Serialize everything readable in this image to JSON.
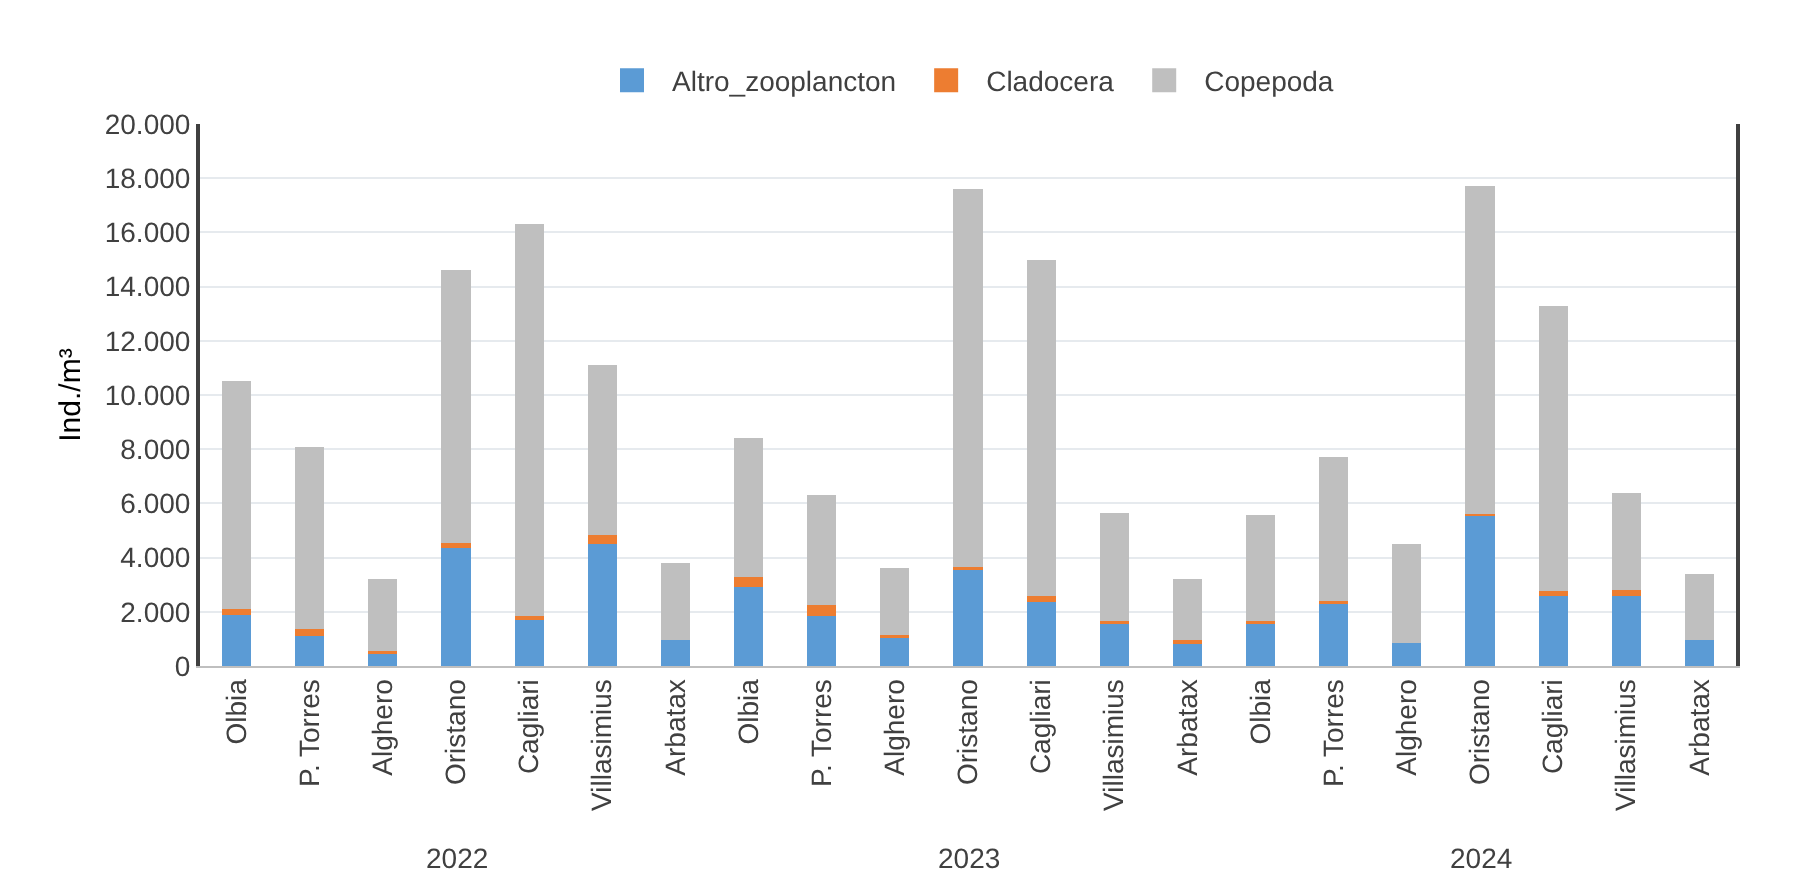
{
  "chart_data": {
    "type": "bar",
    "stacked": true,
    "ylabel": "Ind./m³",
    "categories": [
      "Olbia",
      "P. Torres",
      "Alghero",
      "Oristano",
      "Cagliari",
      "Villasimius",
      "Arbatax",
      "Olbia",
      "P. Torres",
      "Alghero",
      "Oristano",
      "Cagliari",
      "Villasimius",
      "Arbatax",
      "Olbia",
      "P. Torres",
      "Alghero",
      "Oristano",
      "Cagliari",
      "Villasimius",
      "Arbatax"
    ],
    "annotations": [
      "2022",
      "2023",
      "2024"
    ],
    "series": [
      {
        "name": "Altro_zooplancton",
        "color": "#5b9bd5",
        "values": [
          1900,
          1100,
          500,
          4350,
          1750,
          4500,
          950,
          2900,
          1850,
          1050,
          3550,
          2350,
          1550,
          800,
          1550,
          2300,
          850,
          5550,
          2650,
          2600,
          950
        ]
      },
      {
        "name": "Cladocera",
        "color": "#ed7d31",
        "values": [
          200,
          250,
          50,
          200,
          100,
          350,
          0,
          400,
          400,
          100,
          100,
          250,
          100,
          150,
          100,
          100,
          0,
          50,
          100,
          200,
          0
        ]
      },
      {
        "name": "Copepoda",
        "color": "#bfbfbf",
        "values": [
          8400,
          6750,
          2650,
          10050,
          14450,
          6250,
          2850,
          5100,
          4050,
          2450,
          13950,
          12400,
          4000,
          2250,
          3920,
          5300,
          3650,
          12100,
          10550,
          3600,
          2450
        ]
      }
    ],
    "ylim": [
      0,
      20000
    ],
    "yticks": [
      {
        "value": 0,
        "label": "0"
      },
      {
        "value": 2000,
        "label": "2.000"
      },
      {
        "value": 4000,
        "label": "4.000"
      },
      {
        "value": 6000,
        "label": "6.000"
      },
      {
        "value": 8000,
        "label": "8.000"
      },
      {
        "value": 10000,
        "label": "10.000"
      },
      {
        "value": 12000,
        "label": "12.000"
      },
      {
        "value": 14000,
        "label": "14.000"
      },
      {
        "value": 16000,
        "label": "16.000"
      },
      {
        "value": 18000,
        "label": "18.000"
      },
      {
        "value": 20000,
        "label": "20.000"
      }
    ],
    "grid": "y",
    "legend": "top"
  }
}
